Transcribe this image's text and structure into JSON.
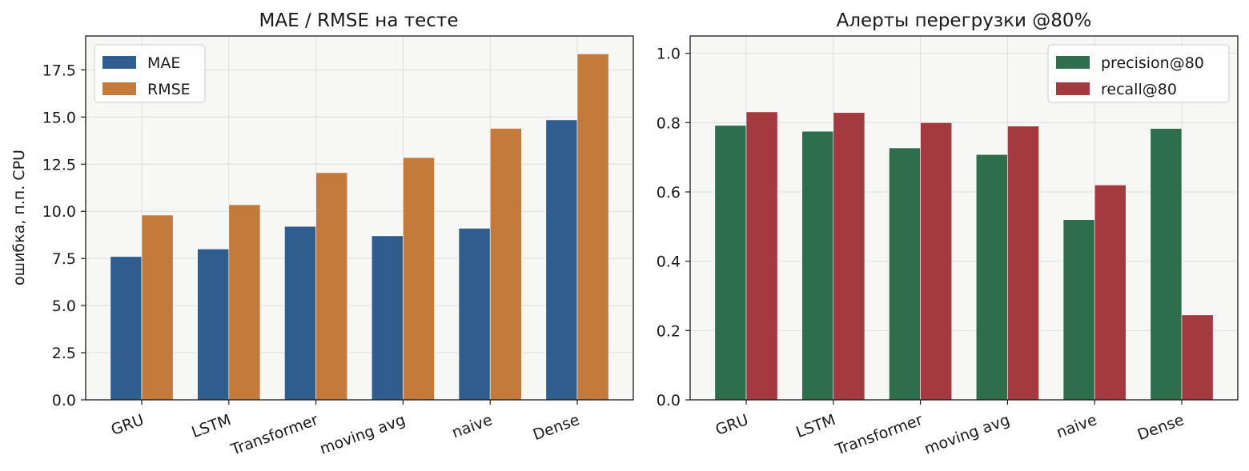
{
  "chart_data": [
    {
      "type": "bar",
      "title": "MAE / RMSE на тесте",
      "xlabel": "",
      "ylabel": "ошибка, п.п. CPU",
      "categories": [
        "GRU",
        "LSTM",
        "Transformer",
        "moving avg",
        "naive",
        "Dense"
      ],
      "series": [
        {
          "name": "MAE",
          "color": "#2e5d8e",
          "values": [
            7.6,
            8.0,
            9.2,
            8.7,
            9.1,
            14.85
          ]
        },
        {
          "name": "RMSE",
          "color": "#c47a3a",
          "values": [
            9.8,
            10.35,
            12.05,
            12.85,
            14.4,
            18.35
          ]
        }
      ],
      "ylim": [
        0,
        19.3
      ],
      "yticks": [
        0.0,
        2.5,
        5.0,
        7.5,
        10.0,
        12.5,
        15.0,
        17.5
      ],
      "ytick_labels": [
        "0.0",
        "2.5",
        "5.0",
        "7.5",
        "10.0",
        "12.5",
        "15.0",
        "17.5"
      ],
      "grid": true,
      "legend": "top-left"
    },
    {
      "type": "bar",
      "title": "Алерты перегрузки @80%",
      "xlabel": "",
      "ylabel": "",
      "categories": [
        "GRU",
        "LSTM",
        "Transformer",
        "moving avg",
        "naive",
        "Dense"
      ],
      "series": [
        {
          "name": "precision@80",
          "color": "#2e6e4c",
          "values": [
            0.792,
            0.775,
            0.727,
            0.708,
            0.52,
            0.783
          ]
        },
        {
          "name": "recall@80",
          "color": "#a33a3f",
          "values": [
            0.831,
            0.829,
            0.8,
            0.79,
            0.62,
            0.245
          ]
        }
      ],
      "ylim": [
        0,
        1.05
      ],
      "yticks": [
        0.0,
        0.2,
        0.4,
        0.6,
        0.8,
        1.0
      ],
      "ytick_labels": [
        "0.0",
        "0.2",
        "0.4",
        "0.6",
        "0.8",
        "1.0"
      ],
      "grid": true,
      "legend": "top-right"
    }
  ]
}
